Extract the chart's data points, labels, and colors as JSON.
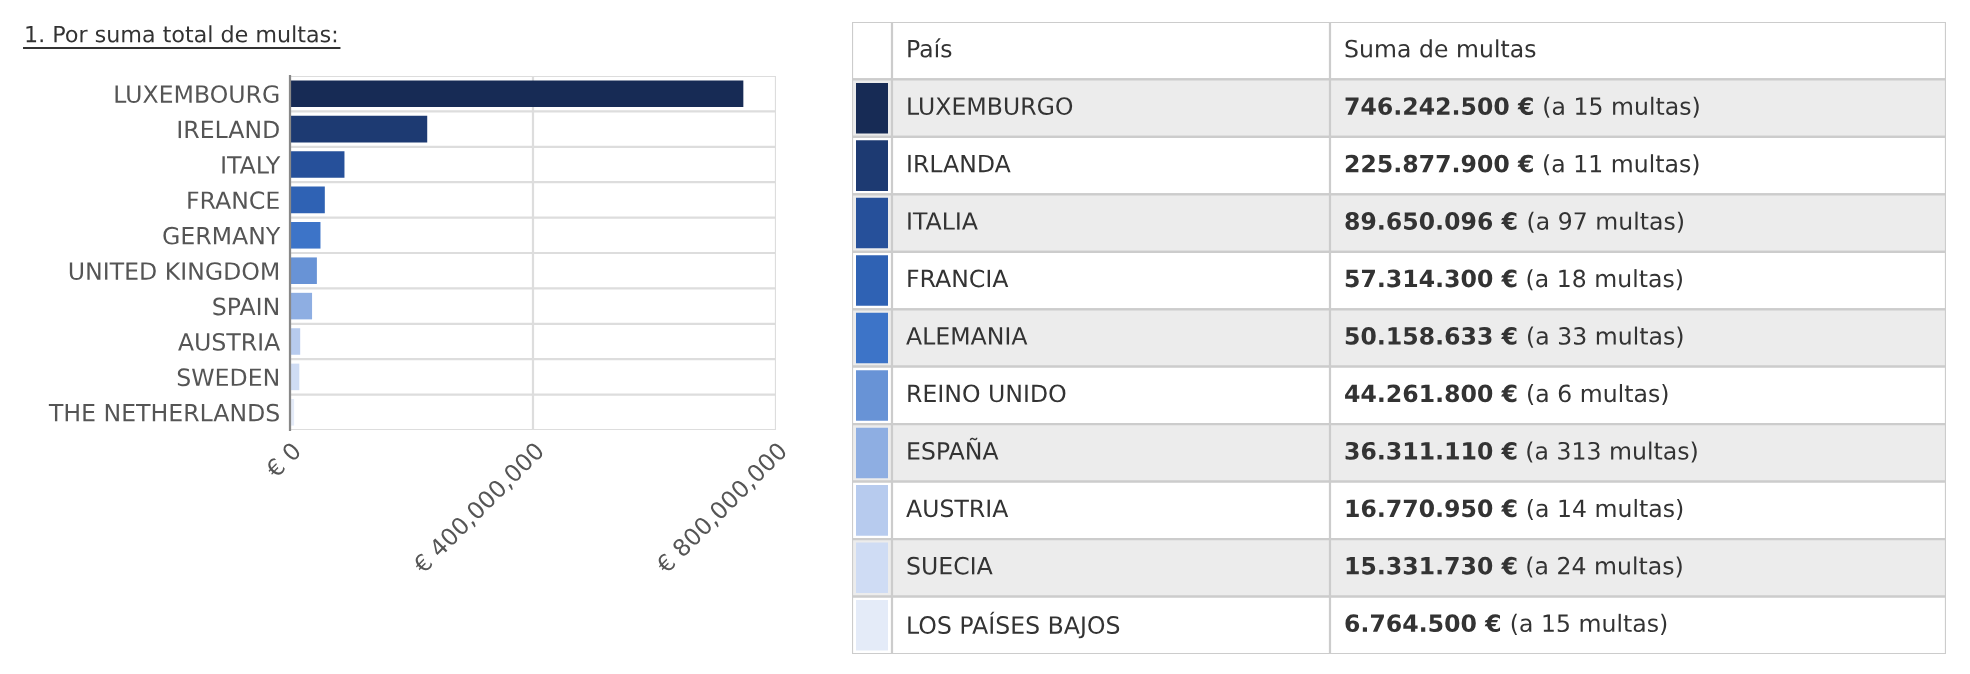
{
  "chart_data": [
    {
      "type": "bar",
      "orientation": "horizontal",
      "title": "1. Por suma total de multas:",
      "categories": [
        "LUXEMBOURG",
        "IRELAND",
        "ITALY",
        "FRANCE",
        "GERMANY",
        "UNITED KINGDOM",
        "SPAIN",
        "AUSTRIA",
        "SWEDEN",
        "THE NETHERLANDS"
      ],
      "values": [
        746242500,
        225877900,
        89650096,
        57314300,
        50158633,
        44261800,
        36311110,
        16770950,
        15331730,
        6764500
      ],
      "colors": [
        "#172b55",
        "#1d3a72",
        "#26509a",
        "#2f62b4",
        "#3d74c8",
        "#6893d6",
        "#8eaee2",
        "#b7cbee",
        "#cfdcf4",
        "#e4ebf8"
      ],
      "xlim": [
        0,
        800000000
      ],
      "xticks": [
        {
          "value": 0,
          "label": "€ 0"
        },
        {
          "value": 400000000,
          "label": "€ 400,000,000"
        },
        {
          "value": 800000000,
          "label": "€ 800,000,000"
        }
      ],
      "grid": "x"
    },
    {
      "type": "other",
      "annotations": [
        "País",
        "Suma de multas"
      ],
      "categories": [
        "LUXEMBURGO",
        "IRLANDA",
        "ITALIA",
        "FRANCIA",
        "ALEMANIA",
        "REINO UNIDO",
        "ESPAÑA",
        "AUSTRIA",
        "SUECIA",
        "LOS PAÍSES BAJOS"
      ],
      "colors": [
        "#172b55",
        "#1d3a72",
        "#26509a",
        "#2f62b4",
        "#3d74c8",
        "#6893d6",
        "#8eaee2",
        "#b7cbee",
        "#cfdcf4",
        "#e4ebf8"
      ],
      "value_labels": [
        "746.242.500 € (a 15 multas)",
        "225.877.900 € (a 11 multas)",
        "89.650.096 € (a 97 multas)",
        "57.314.300 € (a 18 multas)",
        "50.158.633 € (a 33 multas)",
        "44.261.800 € (a 6 multas)",
        "36.311.110 € (a 313 multas)",
        "16.770.950 € (a 14 multas)",
        "15.331.730 € (a 24 multas)",
        "6.764.500 € (a 15 multas)"
      ]
    }
  ]
}
